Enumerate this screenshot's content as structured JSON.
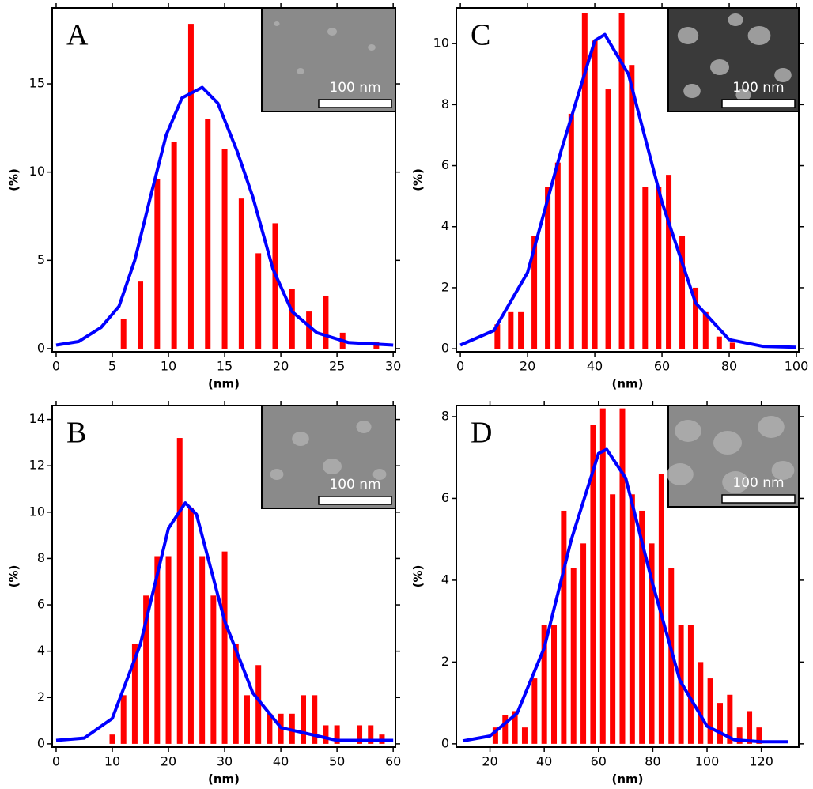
{
  "chart_data": [
    {
      "type": "bar",
      "title": "A",
      "xlabel": "(nm)",
      "ylabel": "(%)",
      "inset_label": "100 nm",
      "x": [
        6,
        7.5,
        9,
        10.5,
        12,
        13.5,
        15,
        16.5,
        18,
        19.5,
        21,
        22.5,
        24,
        25.5,
        28.5
      ],
      "values": [
        1.7,
        3.8,
        9.6,
        11.7,
        18.4,
        13.0,
        11.3,
        8.5,
        5.4,
        7.1,
        3.4,
        2.1,
        3.0,
        0.9,
        0.4
      ],
      "color": "#ff0000",
      "fit": {
        "x": [
          0,
          2,
          4,
          5.6,
          7,
          8.4,
          9.8,
          11.2,
          13,
          14.4,
          16.1,
          17.5,
          19.3,
          21,
          23.2,
          26,
          30
        ],
        "values": [
          0.2,
          0.4,
          1.2,
          2.4,
          5,
          8.6,
          12.1,
          14.2,
          14.8,
          13.9,
          11.2,
          8.6,
          4.5,
          2.1,
          0.9,
          0.35,
          0.2
        ],
        "color": "#0000ff"
      },
      "xlim": [
        -0.35,
        30.2
      ],
      "ylim": [
        -0.18,
        19.3
      ],
      "xticks": [
        0,
        5,
        10,
        15,
        20,
        25,
        30
      ],
      "yticks": [
        0,
        5,
        10,
        15
      ]
    },
    {
      "type": "bar",
      "title": "C",
      "xlabel": "(nm)",
      "ylabel": "(%)",
      "inset_label": "100 nm",
      "x": [
        11,
        15,
        18,
        22,
        26,
        29,
        33,
        37,
        40,
        44,
        48,
        51,
        55,
        59,
        62,
        66,
        70,
        73,
        77,
        81
      ],
      "values": [
        0.8,
        1.2,
        1.2,
        3.7,
        5.3,
        6.1,
        7.7,
        11.0,
        10.1,
        8.5,
        11.0,
        9.3,
        5.3,
        5.3,
        5.7,
        3.7,
        2.0,
        1.2,
        0.4,
        0.2
      ],
      "color": "#ff0000",
      "fit": {
        "x": [
          0,
          10,
          20,
          30,
          40,
          43,
          50,
          60,
          70,
          80,
          90,
          100
        ],
        "values": [
          0.12,
          0.6,
          2.5,
          6.5,
          10.1,
          10.3,
          9.0,
          4.8,
          1.5,
          0.3,
          0.08,
          0.05
        ],
        "color": "#0000ff"
      },
      "xlim": [
        -1.2,
        100.7
      ],
      "ylim": [
        -0.1,
        11.17
      ],
      "xticks": [
        0,
        20,
        40,
        60,
        80,
        100
      ],
      "yticks": [
        0,
        2,
        4,
        6,
        8,
        10
      ]
    },
    {
      "type": "bar",
      "title": "B",
      "xlabel": "(nm)",
      "ylabel": "(%)",
      "inset_label": "100 nm",
      "x": [
        10,
        12,
        14,
        16,
        18,
        20,
        22,
        24,
        26,
        28,
        30,
        32,
        34,
        36,
        38,
        40,
        42,
        44,
        46,
        48,
        50,
        54,
        56,
        58
      ],
      "values": [
        0.4,
        2.1,
        4.3,
        6.4,
        8.1,
        8.1,
        13.2,
        10.2,
        8.1,
        6.4,
        8.3,
        4.3,
        2.1,
        3.4,
        1.3,
        1.3,
        1.3,
        2.1,
        2.1,
        0.8,
        0.8,
        0.8,
        0.8,
        0.4
      ],
      "color": "#ff0000",
      "fit": {
        "x": [
          0,
          5,
          10,
          15,
          20,
          23,
          25,
          30,
          35,
          40,
          50,
          60
        ],
        "values": [
          0.15,
          0.25,
          1.1,
          4.3,
          9.3,
          10.4,
          9.9,
          5.3,
          2.2,
          0.7,
          0.15,
          0.15
        ],
        "color": "#0000ff"
      },
      "xlim": [
        -0.7,
        60.4
      ],
      "ylim": [
        -0.14,
        14.6
      ],
      "xticks": [
        0,
        10,
        20,
        30,
        40,
        50,
        60
      ],
      "yticks": [
        0,
        2,
        4,
        6,
        8,
        10,
        12,
        14
      ]
    },
    {
      "type": "bar",
      "title": "D",
      "xlabel": "(nm)",
      "ylabel": "(%)",
      "inset_label": "100 nm",
      "x": [
        22,
        25.6,
        29.2,
        32.8,
        36.4,
        40,
        43.6,
        47.2,
        50.8,
        54.4,
        58,
        61.6,
        65.2,
        68.8,
        72.4,
        76,
        79.6,
        83.2,
        86.8,
        90.4,
        94,
        97.6,
        101.2,
        104.8,
        108.4,
        112,
        115.6,
        119.2
      ],
      "values": [
        0.4,
        0.7,
        0.8,
        0.4,
        1.6,
        2.9,
        2.9,
        5.7,
        4.3,
        4.9,
        7.8,
        8.2,
        6.1,
        8.2,
        6.1,
        5.7,
        4.9,
        6.6,
        4.3,
        2.9,
        2.9,
        2.0,
        1.6,
        1.0,
        1.2,
        0.4,
        0.8,
        0.4
      ],
      "color": "#ff0000",
      "fit": {
        "x": [
          10,
          20,
          30,
          40,
          50,
          60,
          63,
          70,
          80,
          90,
          100,
          110,
          120,
          130
        ],
        "values": [
          0.07,
          0.19,
          0.75,
          2.35,
          5.0,
          7.1,
          7.2,
          6.5,
          3.9,
          1.55,
          0.43,
          0.1,
          0.05,
          0.05
        ],
        "color": "#0000ff"
      },
      "xlim": [
        7.6,
        133.8
      ],
      "ylim": [
        -0.08,
        8.27
      ],
      "xticks": [
        20,
        40,
        60,
        80,
        100,
        120
      ],
      "yticks": [
        0,
        2,
        4,
        6,
        8
      ]
    }
  ]
}
